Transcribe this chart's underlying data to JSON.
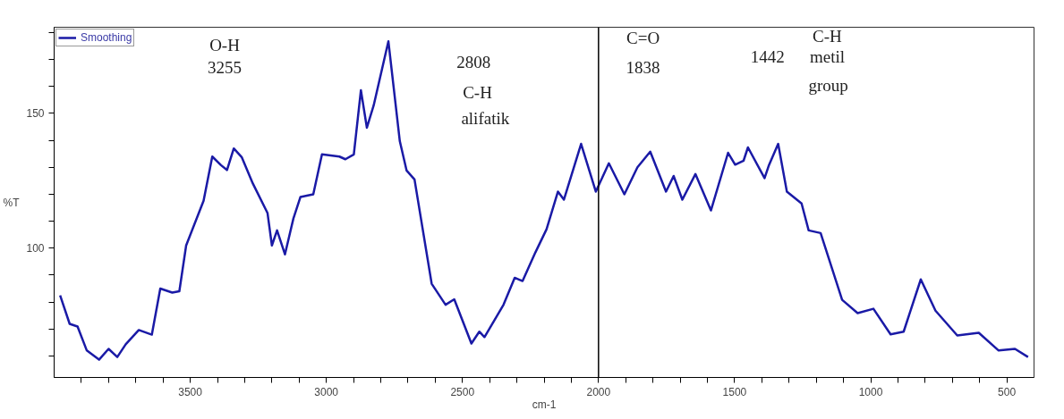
{
  "chart_data": {
    "type": "line",
    "xlabel": "cm-1",
    "ylabel": "%T",
    "xlim": [
      4000,
      400
    ],
    "ylim": [
      52,
      182
    ],
    "xticks": [
      {
        "value": 3900,
        "label": null
      },
      {
        "value": 3800,
        "label": null
      },
      {
        "value": 3700,
        "label": null
      },
      {
        "value": 3600,
        "label": null
      },
      3500,
      {
        "value": 3400,
        "label": null
      },
      {
        "value": 3300,
        "label": null
      },
      {
        "value": 3200,
        "label": null
      },
      {
        "value": 3100,
        "label": null
      },
      3000,
      {
        "value": 2900,
        "label": null
      },
      {
        "value": 2800,
        "label": null
      },
      {
        "value": 2700,
        "label": null
      },
      {
        "value": 2600,
        "label": null
      },
      2500,
      {
        "value": 2400,
        "label": null
      },
      {
        "value": 2300,
        "label": null
      },
      {
        "value": 2200,
        "label": null
      },
      {
        "value": 2100,
        "label": null
      },
      2000,
      {
        "value": 1900,
        "label": null
      },
      {
        "value": 1800,
        "label": null
      },
      {
        "value": 1700,
        "label": null
      },
      {
        "value": 1600,
        "label": null
      },
      1500,
      {
        "value": 1400,
        "label": null
      },
      {
        "value": 1300,
        "label": null
      },
      {
        "value": 1200,
        "label": null
      },
      {
        "value": 1100,
        "label": null
      },
      1000,
      {
        "value": 900,
        "label": null
      },
      {
        "value": 800,
        "label": null
      },
      {
        "value": 700,
        "label": null
      },
      {
        "value": 600,
        "label": null
      },
      500
    ],
    "yticks": [
      {
        "value": 60,
        "label": null
      },
      {
        "value": 70,
        "label": null
      },
      {
        "value": 80,
        "label": null
      },
      {
        "value": 90,
        "label": null
      },
      100,
      {
        "value": 110,
        "label": null
      },
      {
        "value": 120,
        "label": null
      },
      {
        "value": 130,
        "label": null
      },
      {
        "value": 140,
        "label": null
      },
      150,
      {
        "value": 160,
        "label": null
      },
      {
        "value": 170,
        "label": null
      },
      {
        "value": 180,
        "label": null
      }
    ],
    "grid": false,
    "legend": "top left",
    "marker": "none",
    "line_style": "solid",
    "ref_lines": [
      {
        "axis": "x",
        "value": 2000,
        "color": "#000000"
      }
    ],
    "annotations": [
      "O-H",
      "3255",
      "2808",
      "C-H",
      "alifatik",
      "C=O",
      "1838",
      "C-H",
      "1442",
      "metil",
      "group"
    ],
    "series": [
      {
        "name": "Smoothing",
        "color": "#1a1aa6",
        "x": [
          3978,
          3943,
          3914,
          3880,
          3835,
          3800,
          3768,
          3737,
          3689,
          3641,
          3610,
          3566,
          3540,
          3515,
          3451,
          3419,
          3387,
          3365,
          3340,
          3311,
          3270,
          3216,
          3200,
          3181,
          3152,
          3121,
          3095,
          3048,
          3016,
          2952,
          2930,
          2899,
          2873,
          2851,
          2826,
          2772,
          2730,
          2705,
          2676,
          2613,
          2562,
          2530,
          2467,
          2438,
          2419,
          2349,
          2308,
          2279,
          2232,
          2191,
          2149,
          2127,
          2064,
          2010,
          1962,
          1905,
          1857,
          1810,
          1752,
          1724,
          1692,
          1644,
          1587,
          1524,
          1498,
          1467,
          1451,
          1390,
          1375,
          1340,
          1308,
          1254,
          1228,
          1184,
          1105,
          1048,
          990,
          927,
          879,
          816,
          762,
          682,
          603,
          530,
          470,
          422
        ],
        "values": [
          82.5,
          71.9,
          70.9,
          62,
          58.6,
          62.6,
          59.6,
          64.3,
          69.6,
          67.9,
          85,
          83.5,
          84,
          101,
          117.6,
          134,
          130.8,
          129,
          137,
          133.8,
          124,
          113,
          101,
          106.6,
          97.7,
          111,
          119,
          120,
          134.8,
          134,
          133,
          134.8,
          158.6,
          144.7,
          153,
          176.8,
          139.7,
          128.8,
          125.5,
          86.8,
          79,
          81,
          64.6,
          69,
          67,
          79,
          89,
          87.8,
          98.4,
          107,
          121,
          118,
          138.7,
          121,
          131.5,
          120,
          130,
          135.8,
          121,
          126.8,
          118,
          127.5,
          114,
          135.4,
          131,
          132.5,
          137.4,
          126,
          130.5,
          138.7,
          121,
          116.6,
          106.6,
          105.6,
          80.8,
          75.9,
          77.5,
          68,
          69,
          88.4,
          76.8,
          67.6,
          68.6,
          62,
          62.6,
          59.6
        ]
      }
    ]
  }
}
